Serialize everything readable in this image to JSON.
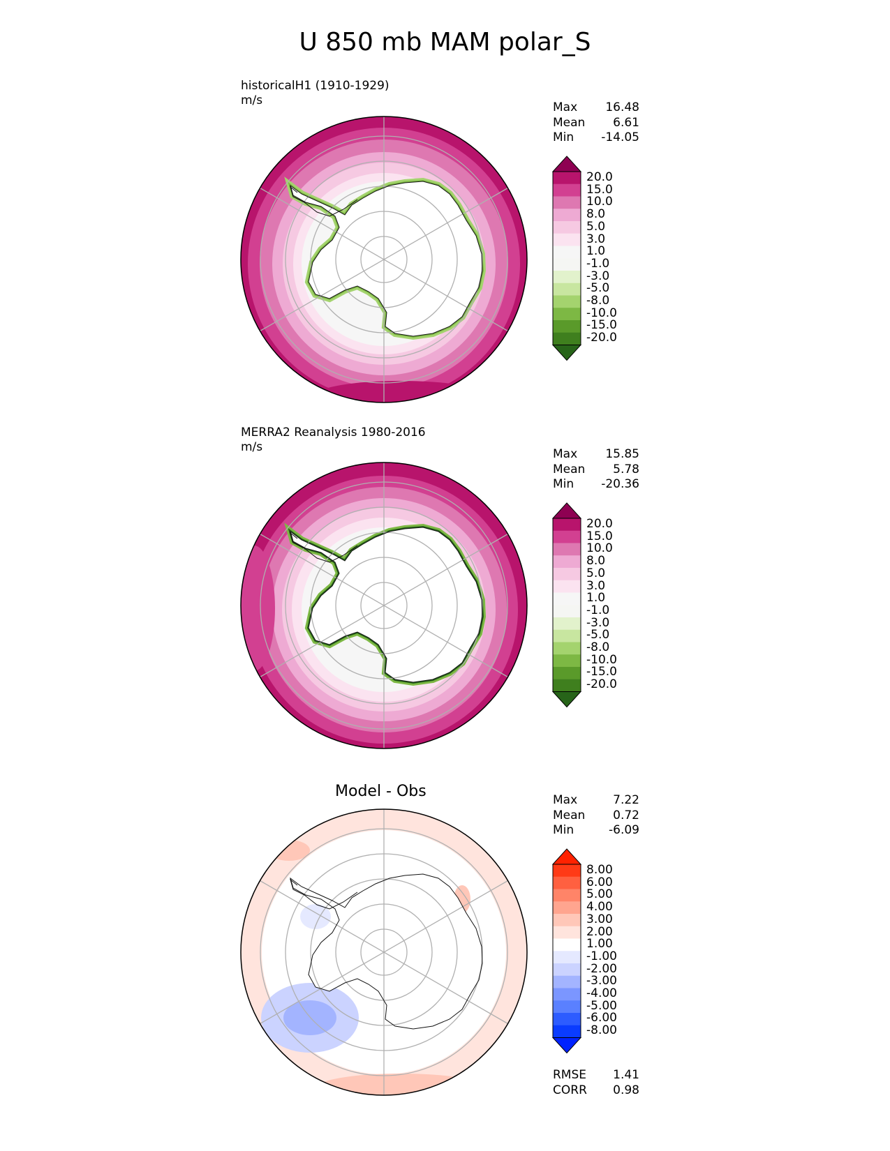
{
  "title": "U 850 mb MAM polar_S",
  "panels": [
    {
      "title_line1": "historicalH1 (1910-1929)",
      "title_line2": "m/s",
      "stats": {
        "max_label": "Max",
        "max": "16.48",
        "mean_label": "Mean",
        "mean": "6.61",
        "min_label": "Min",
        "min": "-14.05"
      },
      "colorbar_labels": [
        "20.0",
        "15.0",
        "10.0",
        "8.0",
        "5.0",
        "3.0",
        "1.0",
        "-1.0",
        "-3.0",
        "-5.0",
        "-8.0",
        "-10.0",
        "-15.0",
        "-20.0"
      ]
    },
    {
      "title_line1": "MERRA2 Reanalysis 1980-2016",
      "title_line2": "m/s",
      "stats": {
        "max_label": "Max",
        "max": "15.85",
        "mean_label": "Mean",
        "mean": "5.78",
        "min_label": "Min",
        "min": "-20.36"
      },
      "colorbar_labels": [
        "20.0",
        "15.0",
        "10.0",
        "8.0",
        "5.0",
        "3.0",
        "1.0",
        "-1.0",
        "-3.0",
        "-5.0",
        "-8.0",
        "-10.0",
        "-15.0",
        "-20.0"
      ]
    },
    {
      "title": "Model - Obs",
      "stats": {
        "max_label": "Max",
        "max": "7.22",
        "mean_label": "Mean",
        "mean": "0.72",
        "min_label": "Min",
        "min": "-6.09"
      },
      "colorbar_labels": [
        "8.00",
        "6.00",
        "5.00",
        "4.00",
        "3.00",
        "2.00",
        "1.00",
        "-1.00",
        "-2.00",
        "-3.00",
        "-4.00",
        "-5.00",
        "-6.00",
        "-8.00"
      ],
      "rmse_label": "RMSE",
      "rmse": "1.41",
      "corr_label": "CORR",
      "corr": "0.98"
    }
  ],
  "colors": {
    "pinkgreen": [
      "#276419",
      "#276419",
      "#3f7f1e",
      "#5a9a2a",
      "#7db844",
      "#a4d36e",
      "#c8e6a0",
      "#e2f2cc",
      "#f5f6f3",
      "#f6f6f6",
      "#fbe3f0",
      "#f6c9e2",
      "#eeaad3",
      "#de78b1",
      "#d24091",
      "#b8146c",
      "#8e0152"
    ],
    "bluered": [
      "#0022ff",
      "#0a3cff",
      "#2d5cff",
      "#5a80ff",
      "#7b96ff",
      "#a3b4ff",
      "#cbd3ff",
      "#e5e9ff",
      "#ffffff",
      "#ffe4dd",
      "#ffc7b8",
      "#ffa58f",
      "#ff8468",
      "#ff6040",
      "#ff3a16",
      "#ff2200"
    ],
    "land_fill": "#ffffff",
    "coast": "#111111",
    "grid": "#b0b0b0"
  }
}
